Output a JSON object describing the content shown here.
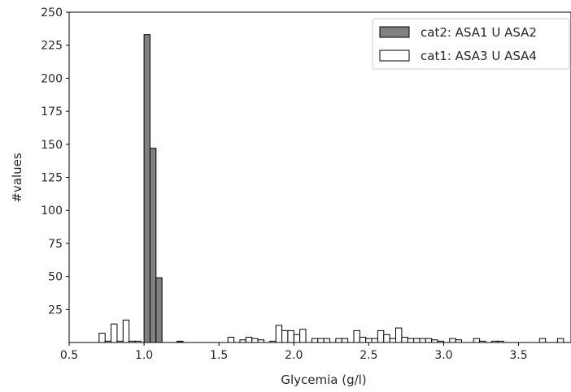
{
  "chart_data": {
    "type": "bar",
    "xlabel": "Glycemia (g/l)",
    "ylabel": "#values",
    "xlim": [
      0.5,
      3.85
    ],
    "ylim": [
      0,
      250
    ],
    "xticks": [
      "0.5",
      "1.0",
      "1.5",
      "2.0",
      "2.5",
      "3.0",
      "3.5"
    ],
    "yticks": [
      "25",
      "50",
      "75",
      "100",
      "125",
      "150",
      "175",
      "200",
      "225",
      "250"
    ],
    "grid": false,
    "legend_position": "top-right",
    "bin_width": 0.04,
    "series": [
      {
        "name": "cat2: ASA1 U ASA2",
        "color": "#808080",
        "bins": [
          {
            "x": 1.0,
            "value": 233
          },
          {
            "x": 1.04,
            "value": 147
          },
          {
            "x": 1.08,
            "value": 49
          },
          {
            "x": 1.22,
            "value": 1
          }
        ]
      },
      {
        "name": "cat1: ASA3 U ASA4",
        "color": "#ffffff",
        "bins": [
          {
            "x": 0.7,
            "value": 7
          },
          {
            "x": 0.74,
            "value": 1
          },
          {
            "x": 0.78,
            "value": 14
          },
          {
            "x": 0.82,
            "value": 1
          },
          {
            "x": 0.86,
            "value": 17
          },
          {
            "x": 0.9,
            "value": 1
          },
          {
            "x": 0.94,
            "value": 1
          },
          {
            "x": 1.56,
            "value": 4
          },
          {
            "x": 1.64,
            "value": 2
          },
          {
            "x": 1.68,
            "value": 4
          },
          {
            "x": 1.72,
            "value": 3
          },
          {
            "x": 1.76,
            "value": 2
          },
          {
            "x": 1.84,
            "value": 1
          },
          {
            "x": 1.88,
            "value": 13
          },
          {
            "x": 1.92,
            "value": 9
          },
          {
            "x": 1.96,
            "value": 9
          },
          {
            "x": 2.0,
            "value": 6
          },
          {
            "x": 2.04,
            "value": 10
          },
          {
            "x": 2.12,
            "value": 3
          },
          {
            "x": 2.16,
            "value": 3
          },
          {
            "x": 2.2,
            "value": 3
          },
          {
            "x": 2.28,
            "value": 3
          },
          {
            "x": 2.32,
            "value": 3
          },
          {
            "x": 2.4,
            "value": 9
          },
          {
            "x": 2.44,
            "value": 4
          },
          {
            "x": 2.48,
            "value": 3
          },
          {
            "x": 2.52,
            "value": 3
          },
          {
            "x": 2.56,
            "value": 9
          },
          {
            "x": 2.6,
            "value": 6
          },
          {
            "x": 2.64,
            "value": 3
          },
          {
            "x": 2.68,
            "value": 11
          },
          {
            "x": 2.72,
            "value": 4
          },
          {
            "x": 2.76,
            "value": 3
          },
          {
            "x": 2.8,
            "value": 3
          },
          {
            "x": 2.84,
            "value": 3
          },
          {
            "x": 2.88,
            "value": 3
          },
          {
            "x": 2.92,
            "value": 2
          },
          {
            "x": 2.96,
            "value": 1
          },
          {
            "x": 3.04,
            "value": 3
          },
          {
            "x": 3.08,
            "value": 2
          },
          {
            "x": 3.2,
            "value": 3
          },
          {
            "x": 3.24,
            "value": 1
          },
          {
            "x": 3.32,
            "value": 1
          },
          {
            "x": 3.36,
            "value": 1
          },
          {
            "x": 3.64,
            "value": 3
          },
          {
            "x": 3.76,
            "value": 3
          }
        ]
      }
    ]
  }
}
